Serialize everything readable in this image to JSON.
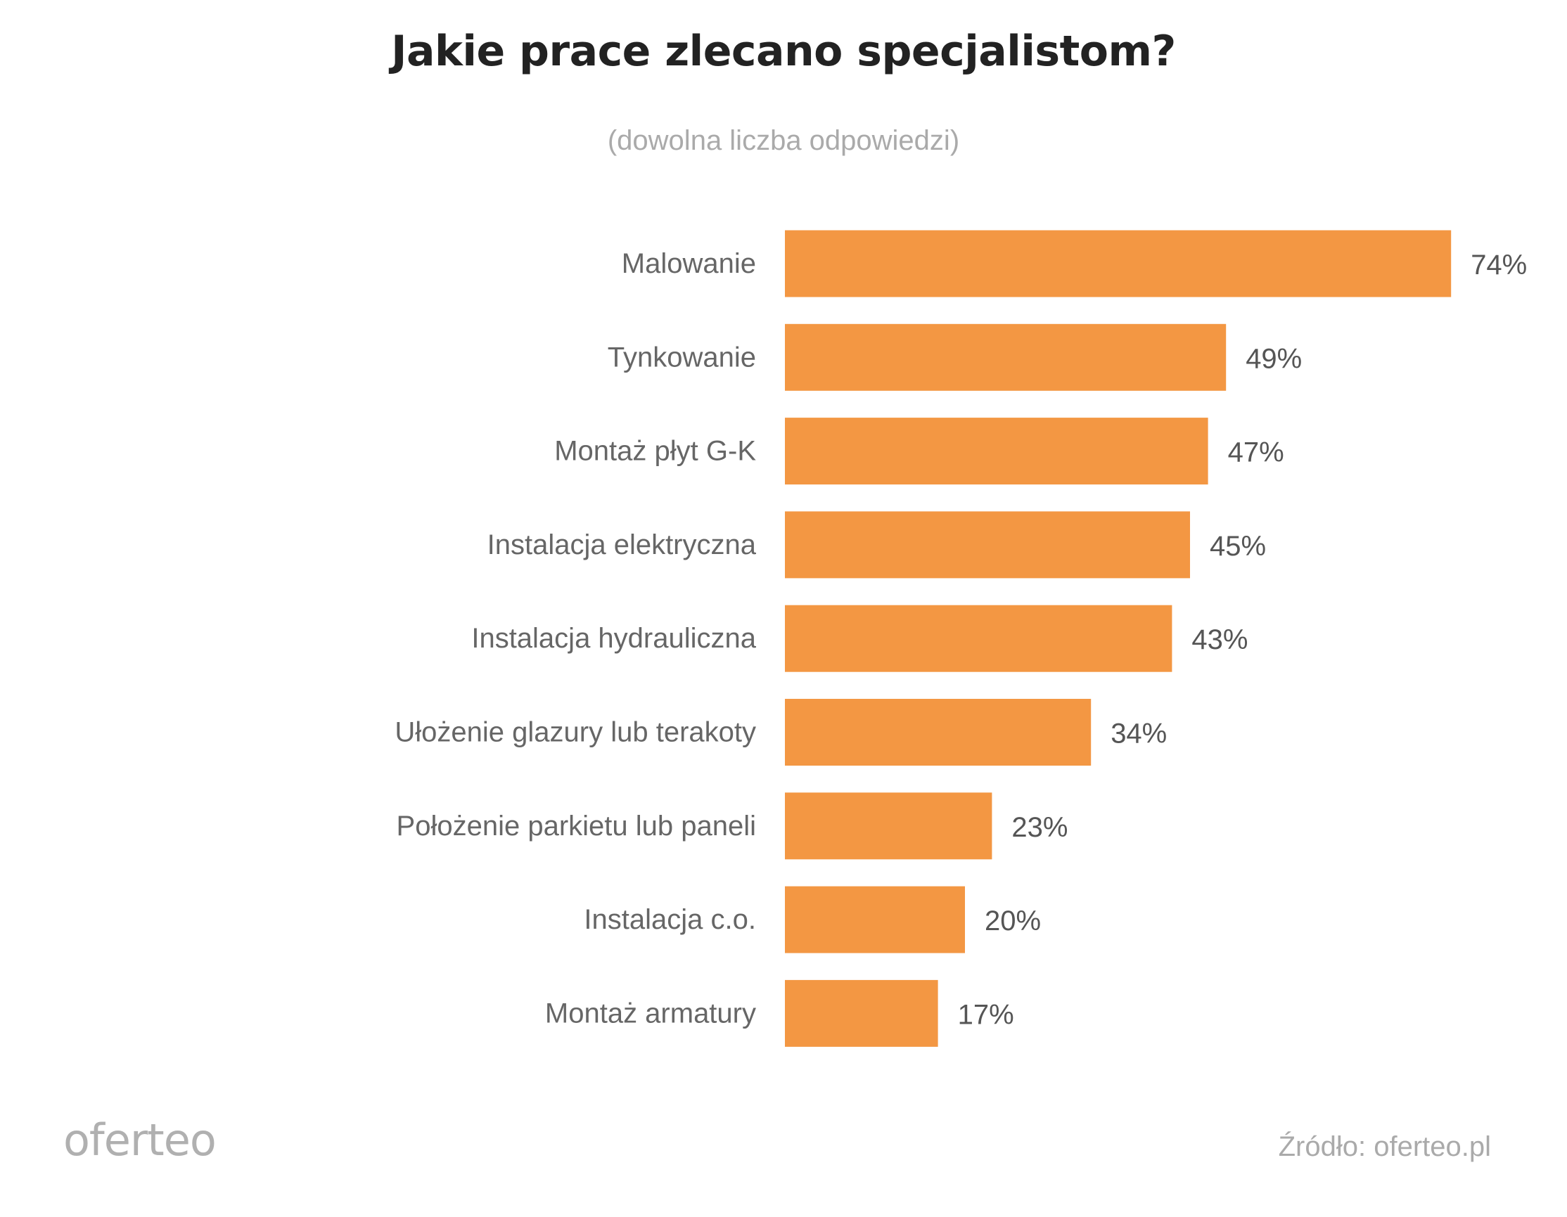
{
  "chart_data": {
    "type": "bar",
    "orientation": "horizontal",
    "title": "Jakie prace zlecano specjalistom?",
    "subtitle": "(dowolna liczba odpowiedzi)",
    "categories": [
      "Malowanie",
      "Tynkowanie",
      "Montaż płyt G-K",
      "Instalacja elektryczna",
      "Instalacja hydrauliczna",
      "Ułożenie glazury lub terakoty",
      "Położenie parkietu lub paneli",
      "Instalacja c.o.",
      "Montaż armatury"
    ],
    "values": [
      74,
      49,
      47,
      45,
      43,
      34,
      23,
      20,
      17
    ],
    "value_labels": [
      "74%",
      "49%",
      "47%",
      "45%",
      "43%",
      "34%",
      "23%",
      "20%",
      "17%"
    ],
    "unit": "%",
    "bar_color": "#f39743",
    "grid": false,
    "legend": "none"
  },
  "logo": "oferteo",
  "source": "Źródło: oferteo.pl"
}
